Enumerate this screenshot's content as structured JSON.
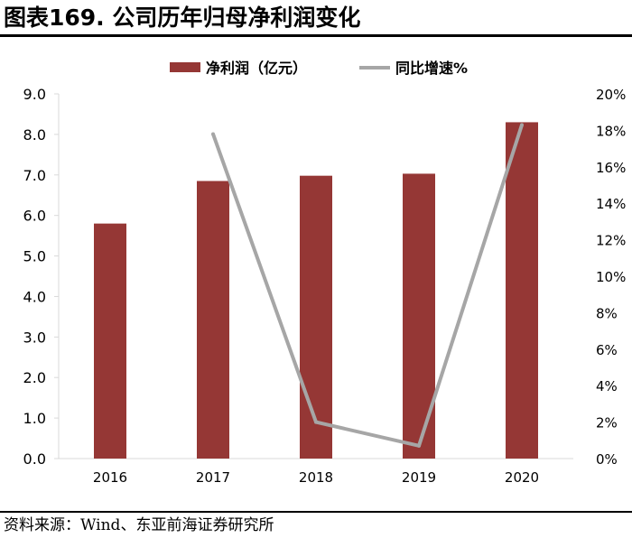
{
  "header": {
    "title": "图表169. 公司历年归母净利润变化"
  },
  "footer": {
    "source": "资料来源：Wind、东亚前海证券研究所"
  },
  "colors": {
    "bar": "#953735",
    "line": "#A6A6A6",
    "axis": "#D9D9D9",
    "text": "#000000"
  },
  "chart_data": {
    "type": "bar",
    "categories": [
      "2016",
      "2017",
      "2018",
      "2019",
      "2020"
    ],
    "series": [
      {
        "name": "净利润（亿元）",
        "type": "bar",
        "axis": "left",
        "values": [
          5.8,
          6.85,
          6.98,
          7.03,
          8.3
        ]
      },
      {
        "name": "同比增速%",
        "type": "line",
        "axis": "right",
        "values": [
          null,
          17.8,
          2.0,
          0.7,
          18.3
        ]
      }
    ],
    "y_left": {
      "min": 0,
      "max": 9,
      "ticks": [
        "0.0",
        "1.0",
        "2.0",
        "3.0",
        "4.0",
        "5.0",
        "6.0",
        "7.0",
        "8.0",
        "9.0"
      ]
    },
    "y_right": {
      "min": 0,
      "max": 20,
      "ticks": [
        "0%",
        "2%",
        "4%",
        "6%",
        "8%",
        "10%",
        "12%",
        "14%",
        "16%",
        "18%",
        "20%"
      ]
    },
    "legend_position": "top",
    "grid": false
  }
}
